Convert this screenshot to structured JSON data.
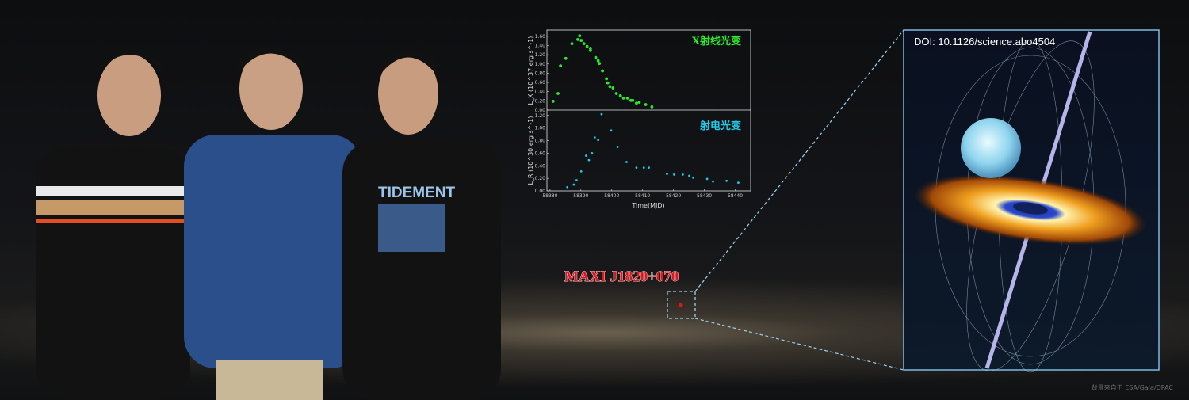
{
  "target_label": "MAXI J1820+070",
  "doi": "DOI: 10.1126/science.abo4504",
  "credit": "背景来自于 ESA/Gaia/DPAC",
  "shirt_text": "TIDEMENT",
  "colors": {
    "xray": "#2ee82e",
    "radio": "#1ec8e8",
    "target": "#e2141c",
    "callout": "#9fd0f0"
  },
  "chart_data": [
    {
      "type": "scatter",
      "title": "X射线光变",
      "ylabel": "L_X (10^37 erg s^-1)",
      "xlabel": "Time(MJD)",
      "xlim": [
        58379,
        58445
      ],
      "ylim": [
        0,
        1.7
      ],
      "yticks": [
        "0.00",
        "0.20",
        "0.40",
        "0.60",
        "0.80",
        "1.00",
        "1.20",
        "1.40",
        "1.60"
      ],
      "xticks": [
        "58380",
        "58390",
        "58400",
        "58410",
        "58420",
        "58430",
        "58440"
      ],
      "color": "#2ee82e",
      "x": [
        58381,
        58382.6,
        58383.4,
        58385.1,
        58387.1,
        58389,
        58389.6,
        58390.1,
        58391,
        58392,
        58393.1,
        58393.1,
        58394.8,
        58395.6,
        58396,
        58397,
        58398.3,
        58398.7,
        58399.4,
        58400.4,
        58401.5,
        58402.8,
        58403.8,
        58405.1,
        58406.2,
        58406.8,
        58408,
        58408.9,
        58411,
        58413
      ],
      "y": [
        0.19,
        0.36,
        0.96,
        1.12,
        1.44,
        1.53,
        1.61,
        1.51,
        1.44,
        1.38,
        1.34,
        1.29,
        1.14,
        1.07,
        1.01,
        0.85,
        0.68,
        0.59,
        0.51,
        0.48,
        0.36,
        0.31,
        0.26,
        0.26,
        0.21,
        0.21,
        0.15,
        0.17,
        0.12,
        0.07
      ]
    },
    {
      "type": "scatter",
      "title": "射电光变",
      "ylabel": "L_R (10^30 erg s^-1)",
      "xlabel": "Time(MJD)",
      "xlim": [
        58379,
        58445
      ],
      "ylim": [
        0,
        1.26
      ],
      "yticks": [
        "0.00",
        "0.20",
        "0.40",
        "0.60",
        "0.80",
        "1.00",
        "1.20"
      ],
      "xticks": [
        "58380",
        "58390",
        "58400",
        "58410",
        "58420",
        "58430",
        "58440"
      ],
      "color": "#1ec8e8",
      "x": [
        58385.6,
        58387.7,
        58388.6,
        58390.1,
        58391.7,
        58392.6,
        58393.6,
        58394.5,
        58395.6,
        58396.7,
        58399.8,
        58401.9,
        58404.8,
        58408,
        58410.4,
        58412,
        58417.9,
        58420.2,
        58423,
        58425.1,
        58426.4,
        58430.9,
        58432.8,
        58437.2,
        58441
      ],
      "y": [
        0.06,
        0.1,
        0.17,
        0.31,
        0.56,
        0.49,
        0.6,
        0.85,
        0.81,
        1.22,
        0.96,
        0.7,
        0.46,
        0.37,
        0.37,
        0.37,
        0.27,
        0.26,
        0.26,
        0.24,
        0.21,
        0.19,
        0.15,
        0.16,
        0.13
      ]
    }
  ]
}
